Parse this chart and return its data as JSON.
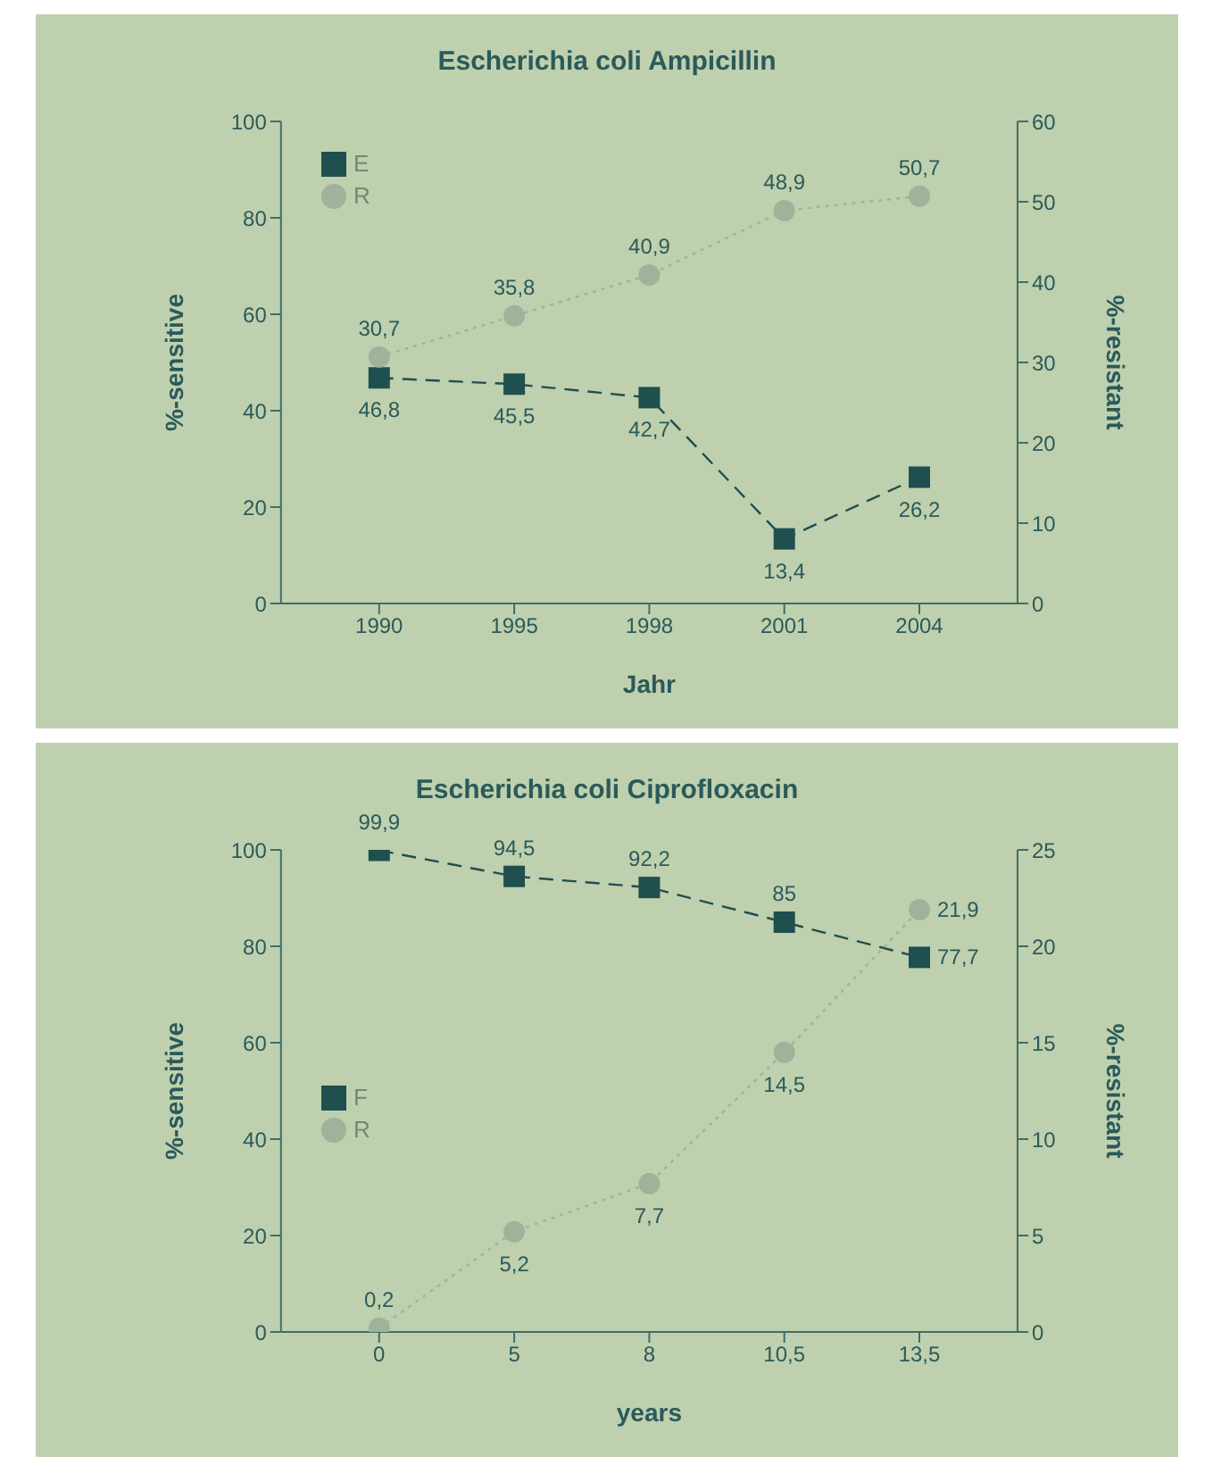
{
  "chart_data": [
    {
      "type": "line",
      "title": "Escherichia coli Ampicillin",
      "xlabel": "Jahr",
      "ylabel": "%-sensitive",
      "y2label": "%-resistant",
      "categories": [
        "1990",
        "1995",
        "1998",
        "2001",
        "2004"
      ],
      "series": [
        {
          "name": "E",
          "color": "#1f4f4f",
          "marker": "square",
          "line_style": "dashed",
          "values": [
            46.8,
            45.5,
            42.7,
            13.4,
            26.2
          ],
          "value_labels": [
            "46,8",
            "45,5",
            "42,7",
            "13,4",
            "26,2"
          ]
        },
        {
          "name": "R",
          "color": "#9fb39a",
          "marker": "circle",
          "line_style": "dotted",
          "axis": "y2",
          "values": [
            30.7,
            35.8,
            40.9,
            48.9,
            50.7
          ],
          "value_labels": [
            "30,7",
            "35,8",
            "40,9",
            "48,9",
            "50,7"
          ]
        }
      ],
      "ylim": [
        0,
        100
      ],
      "yticks": [
        0,
        20,
        40,
        60,
        80,
        100
      ],
      "y2lim": [
        0,
        60
      ],
      "y2ticks": [
        0,
        10,
        20,
        30,
        40,
        50,
        60
      ],
      "grid": false,
      "legend": "top left"
    },
    {
      "type": "line",
      "title": "Escherichia coli Ciprofloxacin",
      "xlabel": "years",
      "ylabel": "%-sensitive",
      "y2label": "%-resistant",
      "categories": [
        "0",
        "5",
        "8",
        "10,5",
        "13,5"
      ],
      "series": [
        {
          "name": "F",
          "color": "#1f4f4f",
          "marker": "square",
          "line_style": "dashed",
          "values": [
            99.9,
            94.5,
            92.2,
            85,
            77.7
          ],
          "value_labels": [
            "99,9",
            "94,5",
            "92,2",
            "85",
            "77,7"
          ]
        },
        {
          "name": "R",
          "color": "#9fb39a",
          "marker": "circle",
          "line_style": "dotted",
          "axis": "y2",
          "values": [
            0.2,
            5.2,
            7.7,
            14.5,
            21.9
          ],
          "value_labels": [
            "0,2",
            "5,2",
            "7,7",
            "14,5",
            "21,9"
          ]
        }
      ],
      "ylim": [
        0,
        100
      ],
      "yticks": [
        0,
        20,
        40,
        60,
        80,
        100
      ],
      "y2lim": [
        0,
        25
      ],
      "y2ticks": [
        0,
        5,
        10,
        15,
        20,
        25
      ],
      "grid": false,
      "legend": "left"
    }
  ]
}
